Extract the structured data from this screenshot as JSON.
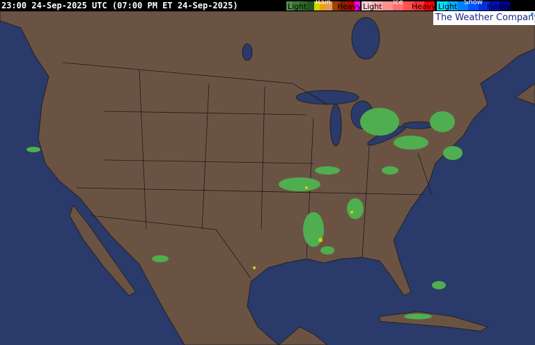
{
  "header": {
    "timestamp": "23:00 24-Sep-2025 UTC  (07:00 PM ET 24-Sep-2025)"
  },
  "legend": {
    "rain": {
      "title": "Rain",
      "light": "Light",
      "heavy": "Heavy",
      "colors": [
        "#4f8f4f",
        "#3a7a3a",
        "#2d6a2d",
        "#225522",
        "#d4d400",
        "#f0a000",
        "#e09a60",
        "#a04000",
        "#8a2000",
        "#c00000",
        "#ff00ff"
      ]
    },
    "ice": {
      "title": "Ice",
      "light": "Light",
      "heavy": "Heavy",
      "colors": [
        "#ffd0d0",
        "#ffb0b0",
        "#ff9090",
        "#ff7070",
        "#ff5050",
        "#ff3030",
        "#ff0000"
      ]
    },
    "snow": {
      "title": "Snow",
      "light": "Light",
      "heavy": "Heavy",
      "colors": [
        "#00e0ff",
        "#00b0ff",
        "#0080ff",
        "#0050ff",
        "#0030e0",
        "#0010c0",
        "#000090"
      ]
    }
  },
  "brand": "The Weather Company",
  "colors": {
    "ocean": "#2a3a6a",
    "land": "#6b5344",
    "borders": "#1a1a1a",
    "precip_light": "#4fae4f",
    "precip_moderate": "#d4d400"
  }
}
